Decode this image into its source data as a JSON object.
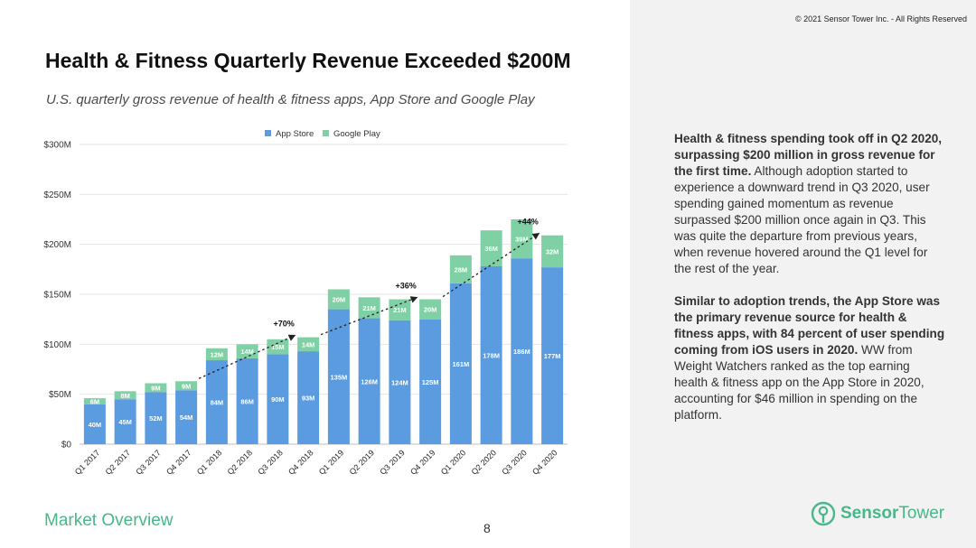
{
  "header": {
    "copyright": "© 2021 Sensor Tower Inc. - All Rights Reserved",
    "title": "Health & Fitness Quarterly Revenue Exceeded $200M",
    "subtitle": "U.S. quarterly gross revenue of health & fitness apps, App Store and Google Play"
  },
  "colors": {
    "app_store": "#5b9be0",
    "google_play": "#7fd0a4",
    "brand": "#48b88a"
  },
  "chart_data": {
    "type": "bar",
    "stacked": true,
    "categories": [
      "Q1 2017",
      "Q2 2017",
      "Q3 2017",
      "Q4 2017",
      "Q1 2018",
      "Q2 2018",
      "Q3 2018",
      "Q4 2018",
      "Q1 2019",
      "Q2 2019",
      "Q3 2019",
      "Q4 2019",
      "Q1 2020",
      "Q2 2020",
      "Q3 2020",
      "Q4 2020"
    ],
    "series": [
      {
        "name": "App Store",
        "values": [
          40,
          45,
          52,
          54,
          84,
          86,
          90,
          93,
          135,
          126,
          124,
          125,
          161,
          178,
          186,
          177
        ],
        "labels": [
          "40M",
          "45M",
          "52M",
          "54M",
          "84M",
          "86M",
          "90M",
          "93M",
          "135M",
          "126M",
          "124M",
          "125M",
          "161M",
          "178M",
          "186M",
          "177M"
        ]
      },
      {
        "name": "Google Play",
        "values": [
          6,
          8,
          9,
          9,
          12,
          14,
          15,
          14,
          20,
          21,
          21,
          20,
          28,
          36,
          39,
          32
        ],
        "labels": [
          "6M",
          "8M",
          "9M",
          "9M",
          "12M",
          "14M",
          "15M",
          "14M",
          "20M",
          "21M",
          "21M",
          "20M",
          "28M",
          "36M",
          "39M",
          "32M"
        ]
      }
    ],
    "yticks": [
      "$0",
      "$50M",
      "$100M",
      "$150M",
      "$200M",
      "$250M",
      "$300M"
    ],
    "ylim": [
      0,
      300
    ],
    "legend_position": "top-center",
    "grid": true,
    "growth_annotations": [
      {
        "from": "Q4 2017",
        "to": "Q4 2018",
        "label": "+70%"
      },
      {
        "from": "Q4 2018",
        "to": "Q4 2019",
        "label": "+36%"
      },
      {
        "from": "Q4 2019",
        "to": "Q4 2020",
        "label": "+44%"
      }
    ]
  },
  "sidebar": {
    "p1_bold": "Health & fitness spending took off in Q2 2020, surpassing $200 million in gross revenue for the first time.",
    "p1_text": " Although adoption started to experience a downward trend in Q3 2020, user spending gained momentum as revenue surpassed $200 million once again in Q3. This was quite the departure from previous years, when revenue hovered around the Q1 level for the rest of the year.",
    "p2_bold": "Similar to adoption trends, the App Store was the primary revenue source for health & fitness apps, with 84 percent of user spending coming from iOS users in 2020.",
    "p2_text": " WW from Weight Watchers ranked as the top earning health & fitness app on the App Store in 2020, accounting for $46 million in spending on the platform."
  },
  "footer": {
    "section": "Market Overview",
    "page": "8"
  },
  "logo": {
    "name": "SensorTower",
    "part1": "Sensor",
    "part2": "Tower"
  }
}
